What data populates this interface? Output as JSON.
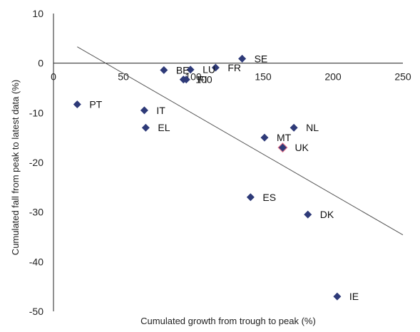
{
  "chart_data": {
    "type": "scatter",
    "title": "",
    "xlabel": "Cumulated  growth from trough to peak (%)",
    "ylabel": "Cumulated  fall from peak to latest data (%)",
    "xlim": [
      0,
      250
    ],
    "ylim": [
      -50,
      10
    ],
    "x_ticks": [
      "0",
      "50",
      "100",
      "150",
      "200",
      "250"
    ],
    "y_ticks": [
      "10",
      "0",
      "-10",
      "-20",
      "-30",
      "-40",
      "-50"
    ],
    "grid": false,
    "legend": "none",
    "marker_color": "#2e3a78",
    "highlight_color": "#e8748a",
    "trend_color": "#555555",
    "trendline": {
      "x": [
        17,
        250
      ],
      "y": [
        3.3,
        -34.6
      ]
    },
    "points": [
      {
        "label": "PT",
        "x": 17,
        "y": -8.3
      },
      {
        "label": "IT",
        "x": 65,
        "y": -9.5
      },
      {
        "label": "EL",
        "x": 66,
        "y": -13
      },
      {
        "label": "BE",
        "x": 79,
        "y": -1.4
      },
      {
        "label": "LU",
        "x": 98,
        "y": -1.3
      },
      {
        "label": "100",
        "x": 93,
        "y": -3.3
      },
      {
        "label": "FI",
        "x": 95,
        "y": -3.3
      },
      {
        "label": "FR",
        "x": 116,
        "y": -0.9
      },
      {
        "label": "SE",
        "x": 135,
        "y": 0.9
      },
      {
        "label": "MT",
        "x": 151,
        "y": -15
      },
      {
        "label": "NL",
        "x": 172,
        "y": -13
      },
      {
        "label": "UK",
        "x": 164,
        "y": -17
      },
      {
        "label": "ES",
        "x": 141,
        "y": -27
      },
      {
        "label": "DK",
        "x": 182,
        "y": -30.5
      },
      {
        "label": "IE",
        "x": 203,
        "y": -47
      }
    ]
  }
}
